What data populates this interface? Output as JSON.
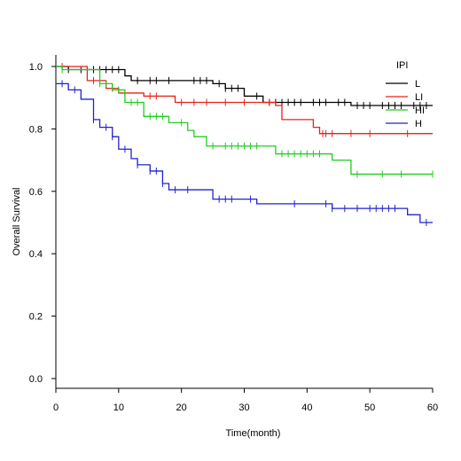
{
  "chart_data": {
    "type": "line",
    "subtype": "kaplan-meier step",
    "xlabel": "Time(month)",
    "ylabel": "Overall Survival",
    "xlim": [
      0,
      60
    ],
    "ylim": [
      0,
      1.05
    ],
    "xticks": [
      0,
      10,
      20,
      30,
      40,
      50,
      60
    ],
    "yticks": [
      0.0,
      0.2,
      0.4,
      0.6,
      0.8,
      1.0
    ],
    "ytick_labels": [
      "0.0",
      "0.2",
      "0.4",
      "0.6",
      "0.8",
      "1.0"
    ],
    "grid": false,
    "legend": {
      "title": "IPI",
      "position": "top-right"
    },
    "series": [
      {
        "name": "L",
        "color": "#000000",
        "steps": [
          [
            0,
            1.0
          ],
          [
            2,
            0.99
          ],
          [
            11,
            0.97
          ],
          [
            12,
            0.955
          ],
          [
            25,
            0.945
          ],
          [
            27,
            0.93
          ],
          [
            30,
            0.905
          ],
          [
            33,
            0.885
          ],
          [
            44,
            0.885
          ],
          [
            47,
            0.875
          ],
          [
            60,
            0.875
          ]
        ],
        "censor": [
          2,
          4,
          6,
          7,
          8,
          9,
          10,
          13,
          15,
          16,
          18,
          22,
          23,
          24,
          26,
          27,
          28,
          29,
          32,
          34,
          35,
          36,
          37,
          38,
          39,
          41,
          42,
          43,
          45,
          46,
          48,
          49,
          50,
          52,
          53,
          54,
          55,
          57,
          58,
          59
        ]
      },
      {
        "name": "LI",
        "color": "#e8221a",
        "steps": [
          [
            0,
            1.0
          ],
          [
            5,
            0.955
          ],
          [
            8,
            0.93
          ],
          [
            10,
            0.915
          ],
          [
            14,
            0.905
          ],
          [
            19,
            0.885
          ],
          [
            35,
            0.875
          ],
          [
            36,
            0.83
          ],
          [
            41,
            0.805
          ],
          [
            42,
            0.785
          ],
          [
            60,
            0.785
          ]
        ],
        "censor": [
          1,
          6,
          9,
          11,
          15,
          16,
          20,
          22,
          24,
          27,
          30,
          34,
          42.5,
          43,
          44,
          47,
          50,
          56
        ]
      },
      {
        "name": "HI",
        "color": "#22cc22",
        "steps": [
          [
            0,
            1.0
          ],
          [
            1,
            0.99
          ],
          [
            7,
            0.945
          ],
          [
            9,
            0.925
          ],
          [
            11,
            0.885
          ],
          [
            14,
            0.84
          ],
          [
            18,
            0.82
          ],
          [
            21,
            0.795
          ],
          [
            22,
            0.775
          ],
          [
            24,
            0.745
          ],
          [
            31,
            0.745
          ],
          [
            35,
            0.72
          ],
          [
            44,
            0.7
          ],
          [
            47,
            0.655
          ],
          [
            60,
            0.655
          ]
        ],
        "censor": [
          1,
          7,
          8,
          10,
          12,
          13,
          15,
          16,
          17,
          20,
          25,
          27,
          28,
          29,
          30,
          31,
          32,
          36,
          37,
          38,
          39,
          40,
          41,
          42,
          48,
          52,
          55,
          60
        ]
      },
      {
        "name": "H",
        "color": "#2222cc",
        "steps": [
          [
            0,
            0.945
          ],
          [
            2,
            0.925
          ],
          [
            4,
            0.895
          ],
          [
            6,
            0.83
          ],
          [
            7,
            0.805
          ],
          [
            9,
            0.775
          ],
          [
            10,
            0.735
          ],
          [
            12,
            0.705
          ],
          [
            13,
            0.685
          ],
          [
            15,
            0.665
          ],
          [
            17,
            0.625
          ],
          [
            18,
            0.605
          ],
          [
            25,
            0.575
          ],
          [
            32,
            0.56
          ],
          [
            44,
            0.545
          ],
          [
            56,
            0.525
          ],
          [
            58,
            0.5
          ],
          [
            60,
            0.5
          ]
        ],
        "censor": [
          1,
          3,
          6,
          8,
          9,
          11,
          13,
          15,
          16,
          17,
          19,
          21,
          26,
          27,
          28,
          31,
          38,
          43,
          44,
          46,
          48,
          50,
          51,
          52,
          53,
          54,
          59
        ]
      }
    ]
  }
}
